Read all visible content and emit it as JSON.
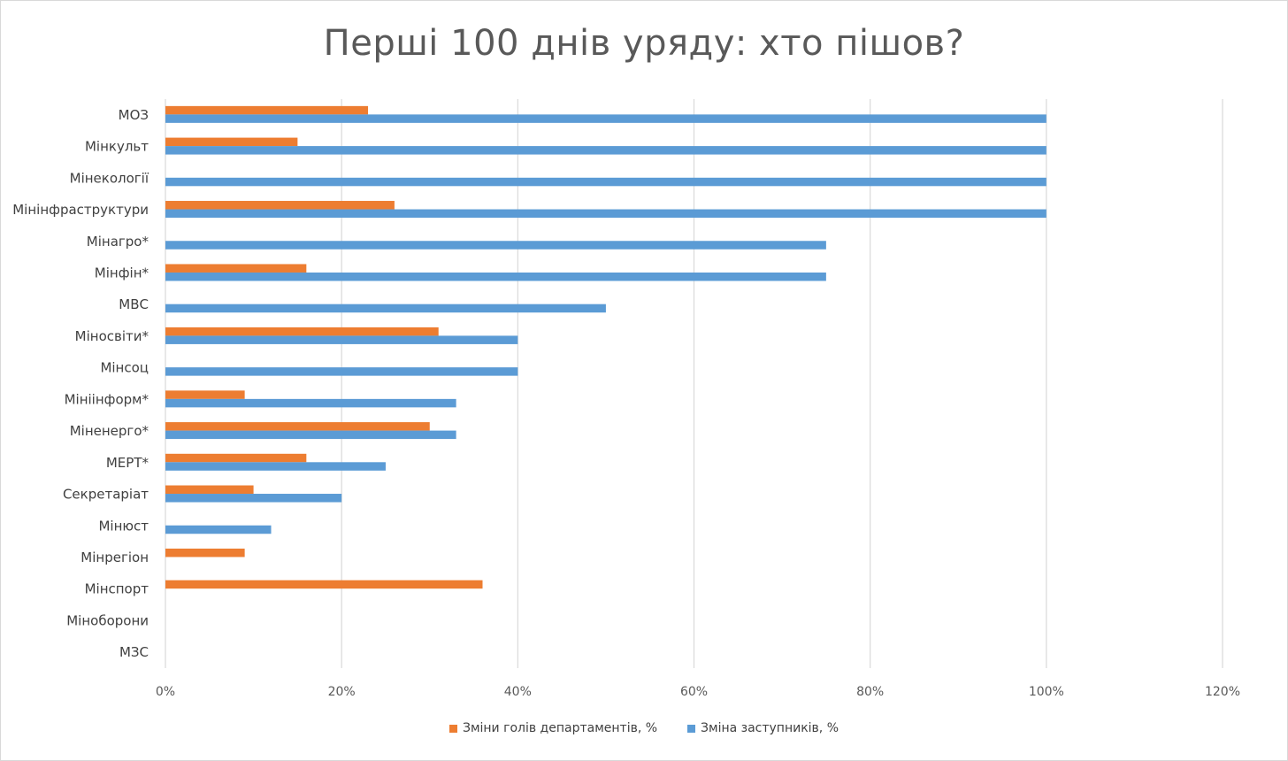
{
  "chart_data": {
    "type": "bar",
    "orientation": "horizontal",
    "title": "Перші 100 днів уряду: хто пішов?",
    "categories": [
      "МОЗ",
      "Мінкульт",
      "Мінекології",
      "Мінінфраструктури",
      "Мінагро*",
      "Мінфін*",
      "МВС",
      "Міносвіти*",
      "Мінсоц",
      "Мініінформ*",
      "Міненерго*",
      "МЕРТ*",
      "Секретаріат",
      "Мінюст",
      "Мінрегіон",
      "Мінспорт",
      "Міноборони",
      "МЗС"
    ],
    "series": [
      {
        "name": "Зміни голів департаментів, %",
        "color": "#ed7d31",
        "values": [
          23,
          15,
          0,
          26,
          0,
          16,
          0,
          31,
          0,
          9,
          30,
          16,
          10,
          0,
          9,
          36,
          0,
          0
        ]
      },
      {
        "name": "Зміна заступників, %",
        "color": "#5b9bd5",
        "values": [
          100,
          100,
          100,
          100,
          75,
          75,
          50,
          40,
          40,
          33,
          33,
          25,
          20,
          12,
          0,
          0,
          0,
          0
        ]
      }
    ],
    "xlim": [
      0,
      120
    ],
    "xticks": [
      "0%",
      "20%",
      "40%",
      "60%",
      "80%",
      "100%",
      "120%"
    ],
    "grid": true,
    "legend_position": "bottom",
    "gridline_color": "#d9d9d9"
  }
}
